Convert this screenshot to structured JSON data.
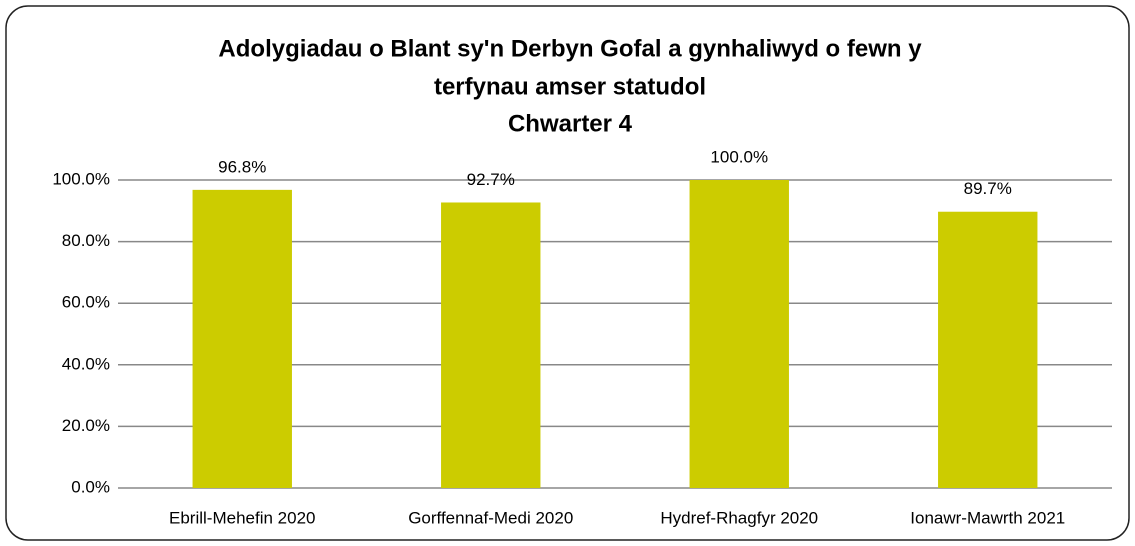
{
  "chart_data": {
    "type": "bar",
    "title": [
      "Adolygiadau o Blant sy'n Derbyn Gofal a gynhaliwyd o fewn y",
      "terfynau amser statudol",
      "Chwarter 4"
    ],
    "categories": [
      "Ebrill-Mehefin 2020",
      "Gorffennaf-Medi 2020",
      "Hydref-Rhagfyr 2020",
      "Ionawr-Mawrth 2021"
    ],
    "values": [
      96.8,
      92.7,
      100.0,
      89.7
    ],
    "value_labels": [
      "96.8%",
      "92.7%",
      "100.0%",
      "89.7%"
    ],
    "color": "#cccc00",
    "ylim": [
      0,
      100
    ],
    "yticks": [
      {
        "value": 0,
        "label": "0.0%"
      },
      {
        "value": 20,
        "label": "20.0%"
      },
      {
        "value": 40,
        "label": "40.0%"
      },
      {
        "value": 60,
        "label": "60.0%"
      },
      {
        "value": 80,
        "label": "80.0%"
      },
      {
        "value": 100,
        "label": "100.0%"
      }
    ],
    "grid": true
  }
}
